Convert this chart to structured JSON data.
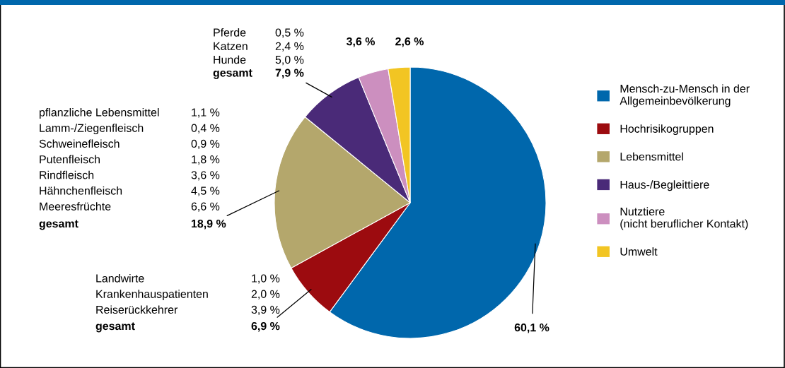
{
  "chart_data": {
    "type": "pie",
    "categories": [
      "Mensch-zu-Mensch in der\nAllgemeinbevölkerung",
      "Hochrisikogruppen",
      "Lebensmittel",
      "Haus-/Begleittiere",
      "Nutztiere\n(nicht beruflicher Kontakt)",
      "Umwelt"
    ],
    "values": [
      60.1,
      6.9,
      18.9,
      7.9,
      3.6,
      2.6
    ],
    "colors": [
      "#0067ac",
      "#9c0b0f",
      "#b4a76c",
      "#4a2a78",
      "#cc8fbf",
      "#f2c523"
    ],
    "value_labels": [
      "60,1 %",
      "6,9 %",
      "18,9 %",
      "7,9 %",
      "3,6 %",
      "2,6 %"
    ],
    "legend": "right",
    "annotations": [
      "Pferde\nKatzen\nHunde",
      "0,5 %\n2,4 %\n5,0 %",
      "gesamt",
      "pflanzliche Lebensmittel\nLamm-/Ziegenfleisch\nSchweinefleisch\nPutenfleisch\nRindfleisch\nHähnchenfleisch\nMeeresfrüchte",
      "1,1 %\n0,4 %\n0,9 %\n1,8 %\n3,6 %\n4,5 %\n6,6 %",
      "gesamt",
      "Landwirte\nKrankenhauspatienten\nReiserückkehrer",
      "1,0 %\n2,0 %\n3,9 %",
      "gesamt"
    ]
  }
}
